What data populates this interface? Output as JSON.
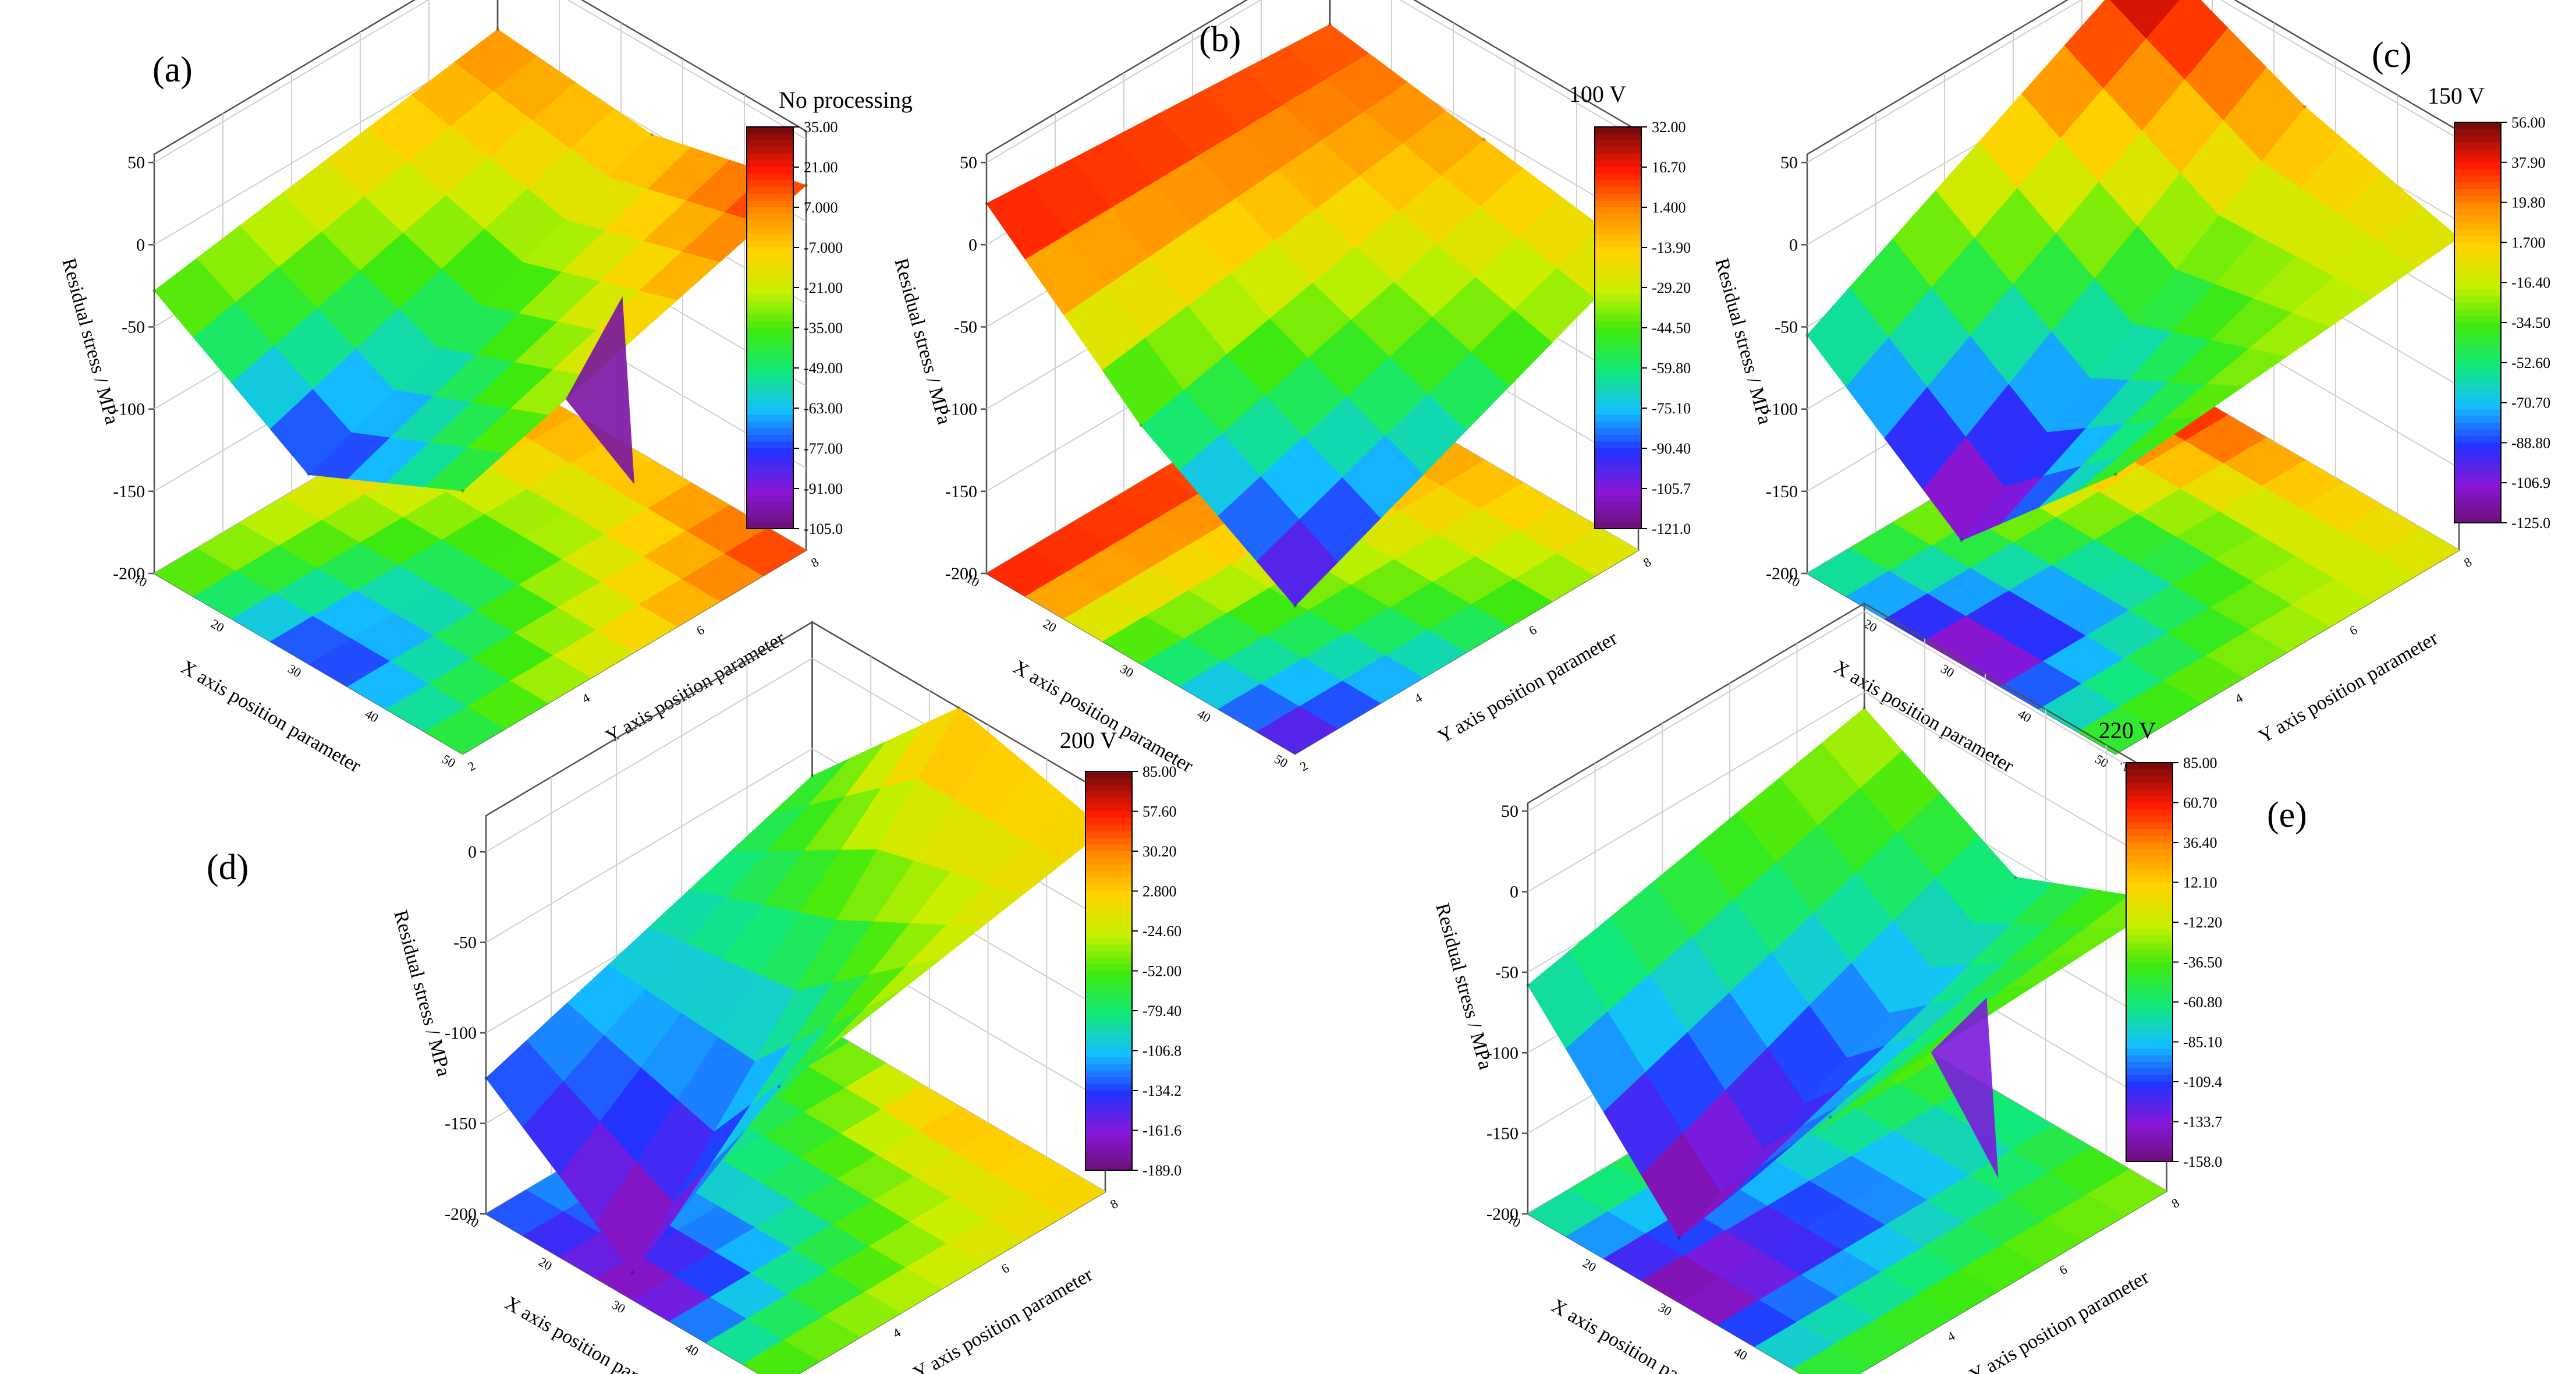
{
  "figure": {
    "shared": {
      "zlabel": "Residual stress / MPa",
      "xlabel": "X axis position parameter",
      "ylabel": "Y axis position parameter",
      "x_ticks": [
        "10",
        "20",
        "30",
        "40",
        "50"
      ],
      "y_ticks": [
        "2",
        "4",
        "6",
        "8"
      ],
      "y_ticks_note": "printed rotated on axis"
    }
  },
  "chart_data": [
    {
      "type": "surface3d",
      "panel": "(a)",
      "title": "No processing",
      "z_ticks": [
        "50",
        "0",
        "-50",
        "-100",
        "-150",
        "-200"
      ],
      "zlim": [
        -200,
        55
      ],
      "colorbar": {
        "min": -105,
        "max": 35,
        "ticks": [
          "35.00",
          "21.00",
          "7.000",
          "-7.000",
          "-21.00",
          "-35.00",
          "-49.00",
          "-63.00",
          "-77.00",
          "-91.00",
          "-105.0"
        ]
      },
      "surface": {
        "rows": [
          10,
          30,
          50
        ],
        "cols": [
          2,
          8
        ],
        "z": [
          [
            -28,
            7
          ],
          [
            -85,
            -2
          ],
          [
            -40,
            22
          ]
        ],
        "extra_points": [
          {
            "x": 50,
            "y": 5,
            "z": -98
          }
        ]
      }
    },
    {
      "type": "surface3d",
      "panel": "(b)",
      "title": "100 V",
      "z_ticks": [
        "50",
        "0",
        "-50",
        "-100",
        "-150",
        "-200"
      ],
      "zlim": [
        -200,
        55
      ],
      "colorbar": {
        "min": -121,
        "max": 32,
        "ticks": [
          "32.00",
          "16.70",
          "1.400",
          "-13.90",
          "-29.20",
          "-44.50",
          "-59.80",
          "-75.10",
          "-90.40",
          "-105.7",
          "-121.0"
        ]
      },
      "surface": {
        "rows": [
          10,
          30,
          50
        ],
        "cols": [
          2,
          8
        ],
        "z": [
          [
            25,
            10
          ],
          [
            -55,
            -5
          ],
          [
            -110,
            -20
          ]
        ]
      }
    },
    {
      "type": "surface3d",
      "panel": "(c)",
      "title": "150 V",
      "z_ticks": [
        "50",
        "0",
        "-50",
        "-100",
        "-150",
        "-200"
      ],
      "zlim": [
        -200,
        55
      ],
      "colorbar": {
        "min": -125,
        "max": 56,
        "ticks": [
          "56.00",
          "37.90",
          "19.80",
          "1.700",
          "-16.40",
          "-34.50",
          "-52.60",
          "-70.70",
          "-88.80",
          "-106.9",
          "-125.0"
        ]
      },
      "surface": {
        "rows": [
          10,
          30,
          50
        ],
        "cols": [
          2,
          8
        ],
        "z": [
          [
            -55,
            56
          ],
          [
            -125,
            15
          ],
          [
            -30,
            -10
          ]
        ]
      }
    },
    {
      "type": "surface3d",
      "panel": "(d)",
      "title": "200 V",
      "z_ticks": [
        "0",
        "-50",
        "-100",
        "-150",
        "-200"
      ],
      "zlim": [
        -200,
        20
      ],
      "colorbar": {
        "min": -189,
        "max": 85,
        "ticks": [
          "85.00",
          "57.60",
          "30.20",
          "2.800",
          "-24.60",
          "-52.00",
          "-79.40",
          "-106.8",
          "-134.2",
          "-161.6",
          "-189.0"
        ]
      },
      "surface": {
        "rows": [
          10,
          30,
          50
        ],
        "cols": [
          2,
          8
        ],
        "z": [
          [
            -125,
            -65
          ],
          [
            -185,
            20
          ],
          [
            -35,
            0
          ]
        ]
      }
    },
    {
      "type": "surface3d",
      "panel": "(e)",
      "title": "220 V",
      "z_ticks": [
        "50",
        "0",
        "-50",
        "-100",
        "-150",
        "-200"
      ],
      "zlim": [
        -200,
        55
      ],
      "colorbar": {
        "min": -158,
        "max": 85,
        "ticks": [
          "85.00",
          "60.70",
          "36.40",
          "12.10",
          "-12.20",
          "-36.50",
          "-60.80",
          "-85.10",
          "-109.4",
          "-133.7",
          "-158.0"
        ]
      },
      "surface": {
        "rows": [
          10,
          30,
          50
        ],
        "cols": [
          2,
          8
        ],
        "z": [
          [
            -58,
            -10
          ],
          [
            -160,
            -60
          ],
          [
            -30,
            -20
          ]
        ],
        "extra_points": [
          {
            "x": 50,
            "y": 5,
            "z": -130
          }
        ]
      }
    }
  ]
}
